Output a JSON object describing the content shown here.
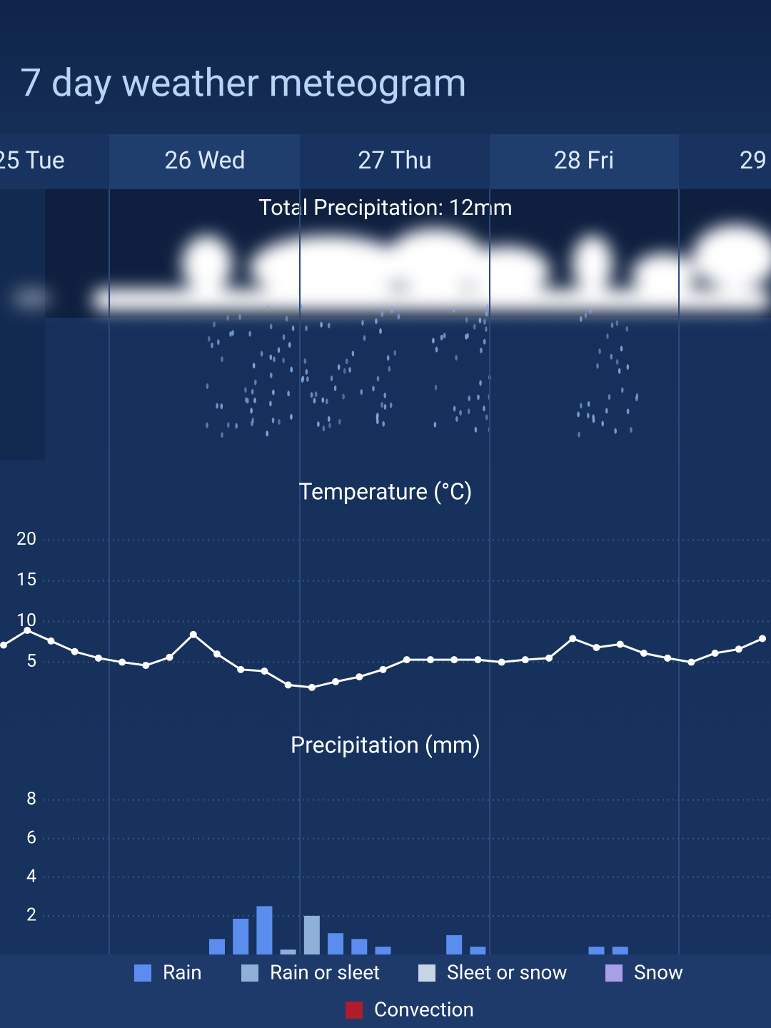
{
  "title": "7 day weather meteogram",
  "days": [
    "25 Tue",
    "26 Wed",
    "27 Thu",
    "28 Fri",
    "29"
  ],
  "total_precipitation": "Total Precipitation: 12mm",
  "chart_data": [
    {
      "type": "line",
      "title": "Temperature (°C)",
      "categories": [
        null,
        null,
        null,
        null,
        null,
        null,
        null,
        null,
        null,
        null,
        null,
        null,
        null,
        null,
        null,
        null,
        null,
        null,
        null,
        null,
        null,
        null,
        null,
        null,
        null,
        null,
        null,
        null,
        null,
        null,
        null,
        null,
        null
      ],
      "values": [
        7.1,
        8.9,
        7.6,
        6.3,
        5.5,
        5.0,
        4.6,
        5.6,
        8.4,
        6.0,
        4.1,
        3.9,
        2.2,
        1.9,
        2.6,
        3.2,
        4.1,
        5.3,
        5.3,
        5.3,
        5.3,
        5.0,
        5.3,
        5.5,
        7.9,
        6.8,
        7.2,
        6.1,
        5.5,
        5.0,
        6.1,
        6.6,
        7.9
      ],
      "color": "#ffffff",
      "ylim": [
        -1,
        21
      ],
      "yticks": [
        5,
        10,
        15,
        20
      ],
      "grid": true
    },
    {
      "type": "bar",
      "title": "Precipitation (mm)",
      "stacked": true,
      "categories": [
        null,
        null,
        null,
        null,
        null,
        null,
        null,
        null,
        null,
        null,
        null,
        null,
        null,
        null,
        null,
        null,
        null,
        null,
        null,
        null,
        null,
        null,
        null,
        null,
        null,
        null,
        null,
        null,
        null,
        null,
        null,
        null,
        null
      ],
      "series": [
        {
          "name": "Rain",
          "color": "#5b8def",
          "values": [
            null,
            null,
            null,
            null,
            null,
            null,
            null,
            null,
            null,
            0.8,
            1.85,
            2.5,
            null,
            null,
            1.1,
            0.8,
            0.4,
            null,
            null,
            1.0,
            0.4,
            null,
            null,
            null,
            null,
            0.4,
            0.4,
            null,
            null,
            null,
            null,
            null,
            null
          ]
        },
        {
          "name": "Rain or sleet",
          "color": "#8fb0d8",
          "values": [
            null,
            null,
            null,
            null,
            null,
            null,
            null,
            null,
            null,
            null,
            null,
            null,
            0.25,
            2.0,
            null,
            null,
            null,
            null,
            null,
            null,
            null,
            null,
            null,
            null,
            null,
            null,
            null,
            null,
            null,
            null,
            null,
            null,
            null
          ]
        },
        {
          "name": "Sleet or snow",
          "color": "#c8d4e6",
          "values": [
            null,
            null,
            null,
            null,
            null,
            null,
            null,
            null,
            null,
            null,
            null,
            null,
            null,
            null,
            null,
            null,
            null,
            null,
            null,
            null,
            null,
            null,
            null,
            null,
            null,
            null,
            null,
            null,
            null,
            null,
            null,
            null,
            null
          ]
        },
        {
          "name": "Snow",
          "color": "#a99ee8",
          "values": [
            null,
            null,
            null,
            null,
            null,
            null,
            null,
            null,
            null,
            null,
            null,
            null,
            null,
            null,
            null,
            null,
            null,
            null,
            null,
            null,
            null,
            null,
            null,
            null,
            null,
            null,
            null,
            null,
            null,
            null,
            null,
            null,
            null
          ]
        },
        {
          "name": "Convection",
          "color": "#b01c2a",
          "values": [
            null,
            null,
            null,
            null,
            null,
            null,
            null,
            null,
            null,
            null,
            null,
            null,
            null,
            null,
            null,
            null,
            null,
            null,
            null,
            null,
            null,
            null,
            null,
            null,
            null,
            null,
            null,
            null,
            null,
            null,
            null,
            null,
            null
          ]
        }
      ],
      "ylim": [
        0,
        8.5
      ],
      "yticks": [
        2,
        4,
        6,
        8
      ],
      "grid": true
    }
  ]
}
